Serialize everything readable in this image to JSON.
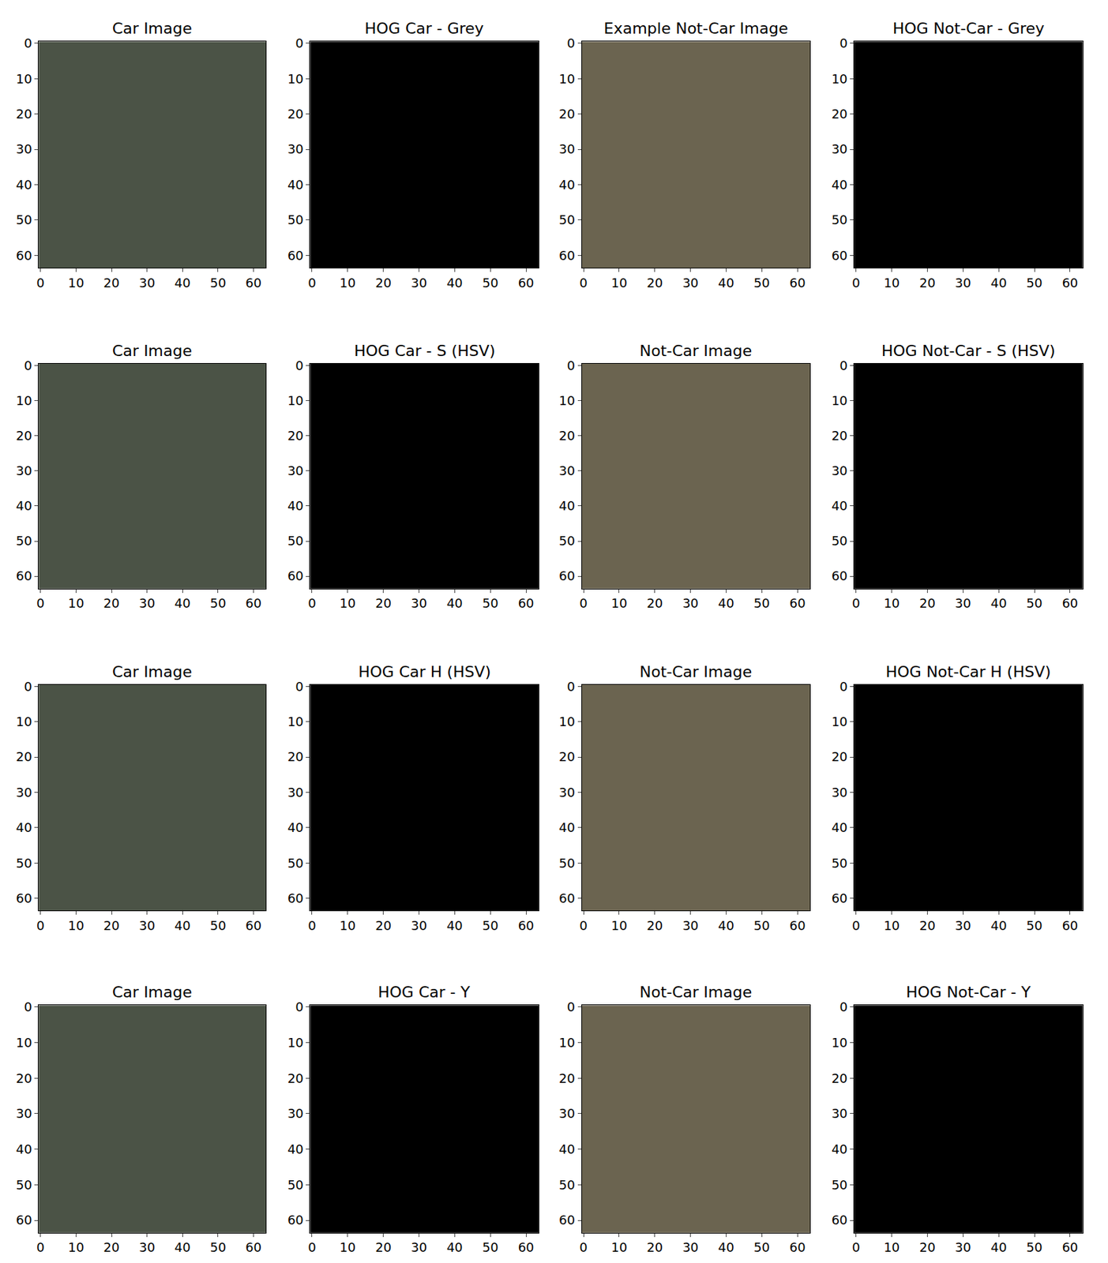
{
  "chart_data": [
    {
      "type": "image",
      "title": "Car Image",
      "color": "#4b5346",
      "xlim": [
        -0.5,
        63.5
      ],
      "ylim": [
        63.5,
        -0.5
      ],
      "xticks": [
        0,
        10,
        20,
        30,
        40,
        50,
        60
      ],
      "yticks": [
        0,
        10,
        20,
        30,
        40,
        50,
        60
      ]
    },
    {
      "type": "hog",
      "title": "HOG Car - Grey",
      "color": "#000000",
      "xlim": [
        -0.5,
        63.5
      ],
      "ylim": [
        63.5,
        -0.5
      ],
      "xticks": [
        0,
        10,
        20,
        30,
        40,
        50,
        60
      ],
      "yticks": [
        0,
        10,
        20,
        30,
        40,
        50,
        60
      ]
    },
    {
      "type": "image",
      "title": "Example Not-Car Image",
      "color": "#6b6450",
      "xlim": [
        -0.5,
        63.5
      ],
      "ylim": [
        63.5,
        -0.5
      ],
      "xticks": [
        0,
        10,
        20,
        30,
        40,
        50,
        60
      ],
      "yticks": [
        0,
        10,
        20,
        30,
        40,
        50,
        60
      ]
    },
    {
      "type": "hog",
      "title": "HOG Not-Car - Grey",
      "color": "#000000",
      "xlim": [
        -0.5,
        63.5
      ],
      "ylim": [
        63.5,
        -0.5
      ],
      "xticks": [
        0,
        10,
        20,
        30,
        40,
        50,
        60
      ],
      "yticks": [
        0,
        10,
        20,
        30,
        40,
        50,
        60
      ]
    },
    {
      "type": "image",
      "title": "Car Image",
      "color": "#4b5346",
      "xlim": [
        -0.5,
        63.5
      ],
      "ylim": [
        63.5,
        -0.5
      ],
      "xticks": [
        0,
        10,
        20,
        30,
        40,
        50,
        60
      ],
      "yticks": [
        0,
        10,
        20,
        30,
        40,
        50,
        60
      ]
    },
    {
      "type": "hog",
      "title": "HOG Car - S (HSV)",
      "color": "#000000",
      "xlim": [
        -0.5,
        63.5
      ],
      "ylim": [
        63.5,
        -0.5
      ],
      "xticks": [
        0,
        10,
        20,
        30,
        40,
        50,
        60
      ],
      "yticks": [
        0,
        10,
        20,
        30,
        40,
        50,
        60
      ]
    },
    {
      "type": "image",
      "title": "Not-Car Image",
      "color": "#6b6450",
      "xlim": [
        -0.5,
        63.5
      ],
      "ylim": [
        63.5,
        -0.5
      ],
      "xticks": [
        0,
        10,
        20,
        30,
        40,
        50,
        60
      ],
      "yticks": [
        0,
        10,
        20,
        30,
        40,
        50,
        60
      ]
    },
    {
      "type": "hog",
      "title": "HOG Not-Car - S (HSV)",
      "color": "#000000",
      "xlim": [
        -0.5,
        63.5
      ],
      "ylim": [
        63.5,
        -0.5
      ],
      "xticks": [
        0,
        10,
        20,
        30,
        40,
        50,
        60
      ],
      "yticks": [
        0,
        10,
        20,
        30,
        40,
        50,
        60
      ]
    },
    {
      "type": "image",
      "title": "Car Image",
      "color": "#4b5346",
      "xlim": [
        -0.5,
        63.5
      ],
      "ylim": [
        63.5,
        -0.5
      ],
      "xticks": [
        0,
        10,
        20,
        30,
        40,
        50,
        60
      ],
      "yticks": [
        0,
        10,
        20,
        30,
        40,
        50,
        60
      ]
    },
    {
      "type": "hog",
      "title": "HOG Car H (HSV)",
      "color": "#000000",
      "xlim": [
        -0.5,
        63.5
      ],
      "ylim": [
        63.5,
        -0.5
      ],
      "xticks": [
        0,
        10,
        20,
        30,
        40,
        50,
        60
      ],
      "yticks": [
        0,
        10,
        20,
        30,
        40,
        50,
        60
      ]
    },
    {
      "type": "image",
      "title": "Not-Car Image",
      "color": "#6b6450",
      "xlim": [
        -0.5,
        63.5
      ],
      "ylim": [
        63.5,
        -0.5
      ],
      "xticks": [
        0,
        10,
        20,
        30,
        40,
        50,
        60
      ],
      "yticks": [
        0,
        10,
        20,
        30,
        40,
        50,
        60
      ]
    },
    {
      "type": "hog",
      "title": "HOG Not-Car H (HSV)",
      "color": "#000000",
      "xlim": [
        -0.5,
        63.5
      ],
      "ylim": [
        63.5,
        -0.5
      ],
      "xticks": [
        0,
        10,
        20,
        30,
        40,
        50,
        60
      ],
      "yticks": [
        0,
        10,
        20,
        30,
        40,
        50,
        60
      ]
    },
    {
      "type": "image",
      "title": "Car Image",
      "color": "#4b5346",
      "xlim": [
        -0.5,
        63.5
      ],
      "ylim": [
        63.5,
        -0.5
      ],
      "xticks": [
        0,
        10,
        20,
        30,
        40,
        50,
        60
      ],
      "yticks": [
        0,
        10,
        20,
        30,
        40,
        50,
        60
      ]
    },
    {
      "type": "hog",
      "title": "HOG Car - Y",
      "color": "#000000",
      "xlim": [
        -0.5,
        63.5
      ],
      "ylim": [
        63.5,
        -0.5
      ],
      "xticks": [
        0,
        10,
        20,
        30,
        40,
        50,
        60
      ],
      "yticks": [
        0,
        10,
        20,
        30,
        40,
        50,
        60
      ]
    },
    {
      "type": "image",
      "title": "Not-Car Image",
      "color": "#6b6450",
      "xlim": [
        -0.5,
        63.5
      ],
      "ylim": [
        63.5,
        -0.5
      ],
      "xticks": [
        0,
        10,
        20,
        30,
        40,
        50,
        60
      ],
      "yticks": [
        0,
        10,
        20,
        30,
        40,
        50,
        60
      ]
    },
    {
      "type": "hog",
      "title": "HOG Not-Car - Y",
      "color": "#000000",
      "xlim": [
        -0.5,
        63.5
      ],
      "ylim": [
        63.5,
        -0.5
      ],
      "xticks": [
        0,
        10,
        20,
        30,
        40,
        50,
        60
      ],
      "yticks": [
        0,
        10,
        20,
        30,
        40,
        50,
        60
      ]
    }
  ]
}
